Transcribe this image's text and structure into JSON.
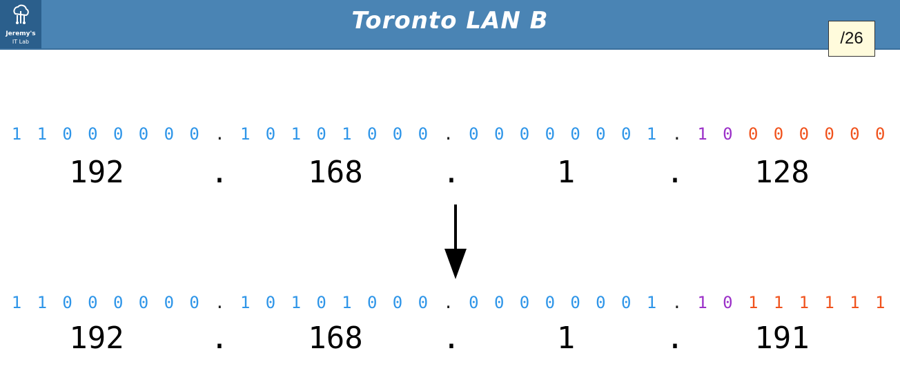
{
  "header": {
    "title": "Toronto LAN B",
    "logo_line1": "Jeremy's",
    "logo_line2": "IT Lab",
    "slide_number": "/26"
  },
  "colors": {
    "header_bg": "#4a84b4",
    "network_bits": "#2e95e8",
    "subnet_bit": "#9b30c8",
    "host_bits": "#f0521c"
  },
  "address1": {
    "binary": [
      {
        "text": "1",
        "role": "net"
      },
      {
        "text": "1",
        "role": "net"
      },
      {
        "text": "0",
        "role": "net"
      },
      {
        "text": "0",
        "role": "net"
      },
      {
        "text": "0",
        "role": "net"
      },
      {
        "text": "0",
        "role": "net"
      },
      {
        "text": "0",
        "role": "net"
      },
      {
        "text": "0",
        "role": "net"
      },
      {
        "text": ".",
        "role": "dot"
      },
      {
        "text": "1",
        "role": "net"
      },
      {
        "text": "0",
        "role": "net"
      },
      {
        "text": "1",
        "role": "net"
      },
      {
        "text": "0",
        "role": "net"
      },
      {
        "text": "1",
        "role": "net"
      },
      {
        "text": "0",
        "role": "net"
      },
      {
        "text": "0",
        "role": "net"
      },
      {
        "text": "0",
        "role": "net"
      },
      {
        "text": ".",
        "role": "dot"
      },
      {
        "text": "0",
        "role": "net"
      },
      {
        "text": "0",
        "role": "net"
      },
      {
        "text": "0",
        "role": "net"
      },
      {
        "text": "0",
        "role": "net"
      },
      {
        "text": "0",
        "role": "net"
      },
      {
        "text": "0",
        "role": "net"
      },
      {
        "text": "0",
        "role": "net"
      },
      {
        "text": "1",
        "role": "net"
      },
      {
        "text": ".",
        "role": "dot"
      },
      {
        "text": "1",
        "role": "purple"
      },
      {
        "text": "0",
        "role": "purple"
      },
      {
        "text": "0",
        "role": "orange"
      },
      {
        "text": "0",
        "role": "orange"
      },
      {
        "text": "0",
        "role": "orange"
      },
      {
        "text": "0",
        "role": "orange"
      },
      {
        "text": "0",
        "role": "orange"
      },
      {
        "text": "0",
        "role": "orange"
      }
    ],
    "decimal": {
      "o1": "192",
      "dot1": ".",
      "o2": "168",
      "dot2": ".",
      "o3": "1",
      "dot3": ".",
      "o4": "128"
    }
  },
  "address2": {
    "binary": [
      {
        "text": "1",
        "role": "net"
      },
      {
        "text": "1",
        "role": "net"
      },
      {
        "text": "0",
        "role": "net"
      },
      {
        "text": "0",
        "role": "net"
      },
      {
        "text": "0",
        "role": "net"
      },
      {
        "text": "0",
        "role": "net"
      },
      {
        "text": "0",
        "role": "net"
      },
      {
        "text": "0",
        "role": "net"
      },
      {
        "text": ".",
        "role": "dot"
      },
      {
        "text": "1",
        "role": "net"
      },
      {
        "text": "0",
        "role": "net"
      },
      {
        "text": "1",
        "role": "net"
      },
      {
        "text": "0",
        "role": "net"
      },
      {
        "text": "1",
        "role": "net"
      },
      {
        "text": "0",
        "role": "net"
      },
      {
        "text": "0",
        "role": "net"
      },
      {
        "text": "0",
        "role": "net"
      },
      {
        "text": ".",
        "role": "dot"
      },
      {
        "text": "0",
        "role": "net"
      },
      {
        "text": "0",
        "role": "net"
      },
      {
        "text": "0",
        "role": "net"
      },
      {
        "text": "0",
        "role": "net"
      },
      {
        "text": "0",
        "role": "net"
      },
      {
        "text": "0",
        "role": "net"
      },
      {
        "text": "0",
        "role": "net"
      },
      {
        "text": "1",
        "role": "net"
      },
      {
        "text": ".",
        "role": "dot"
      },
      {
        "text": "1",
        "role": "purple"
      },
      {
        "text": "0",
        "role": "purple"
      },
      {
        "text": "1",
        "role": "orange"
      },
      {
        "text": "1",
        "role": "orange"
      },
      {
        "text": "1",
        "role": "orange"
      },
      {
        "text": "1",
        "role": "orange"
      },
      {
        "text": "1",
        "role": "orange"
      },
      {
        "text": "1",
        "role": "orange"
      }
    ],
    "decimal": {
      "o1": "192",
      "dot1": ".",
      "o2": "168",
      "dot2": ".",
      "o3": "1",
      "dot3": ".",
      "o4": "191"
    }
  }
}
